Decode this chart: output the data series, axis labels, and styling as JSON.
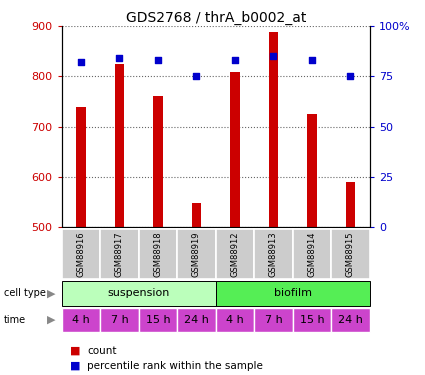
{
  "title": "GDS2768 / thrA_b0002_at",
  "samples": [
    "GSM88916",
    "GSM88917",
    "GSM88918",
    "GSM88919",
    "GSM88912",
    "GSM88913",
    "GSM88914",
    "GSM88915"
  ],
  "counts": [
    740,
    825,
    760,
    548,
    808,
    888,
    725,
    590
  ],
  "percentile_ranks": [
    82,
    84,
    83,
    75,
    83,
    85,
    83,
    75
  ],
  "ylim_left": [
    500,
    900
  ],
  "ylim_right": [
    0,
    100
  ],
  "yticks_left": [
    500,
    600,
    700,
    800,
    900
  ],
  "yticks_right": [
    0,
    25,
    50,
    75,
    100
  ],
  "right_tick_labels": [
    "0",
    "25",
    "50",
    "75",
    "100%"
  ],
  "bar_color": "#cc0000",
  "marker_color": "#0000cc",
  "bar_width": 0.25,
  "cell_type_labels": [
    "suspension",
    "biofilm"
  ],
  "cell_type_colors_light": [
    "#bbffbb",
    "#55ee55"
  ],
  "time_labels": [
    "4 h",
    "7 h",
    "15 h",
    "24 h",
    "4 h",
    "7 h",
    "15 h",
    "24 h"
  ],
  "time_color": "#cc44cc",
  "gsm_bg_color": "#cccccc",
  "legend_count_color": "#cc0000",
  "legend_pct_color": "#0000cc",
  "dotted_line_color": "#666666",
  "title_fontsize": 10,
  "tick_fontsize": 8,
  "gsm_fontsize": 6,
  "annotation_fontsize": 8
}
